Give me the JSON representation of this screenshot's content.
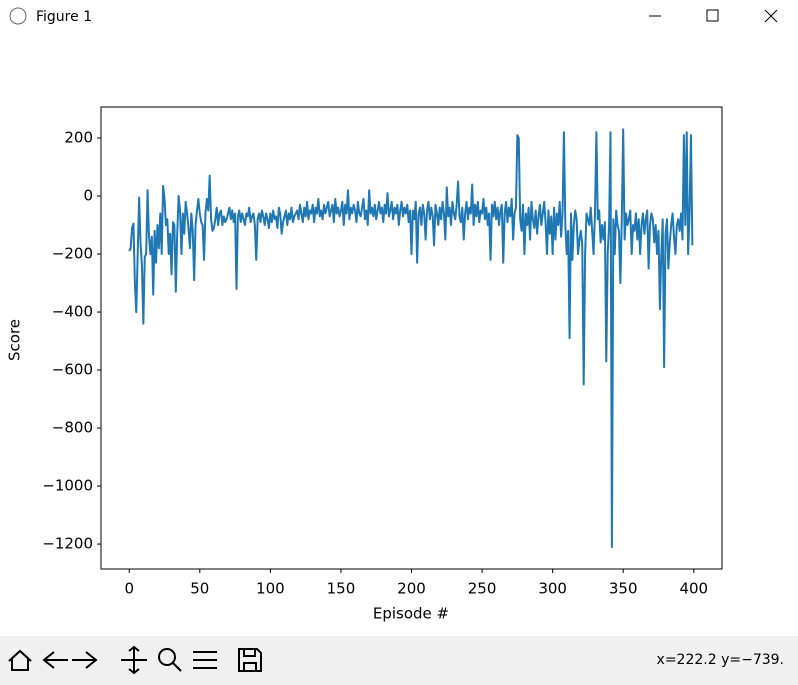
{
  "window": {
    "title": "Figure 1"
  },
  "toolbar": {
    "coordinates": "x=222.2 y=−739."
  },
  "chart_data": {
    "type": "line",
    "xlabel": "Episode #",
    "ylabel": "Score",
    "color": "#1f77b4",
    "xlim": [
      -20,
      420
    ],
    "ylim": [
      -1286,
      307
    ],
    "xticks": [
      0,
      50,
      100,
      150,
      200,
      250,
      300,
      350,
      400
    ],
    "yticks": [
      {
        "value": -1200,
        "label": "−1200"
      },
      {
        "value": -1000,
        "label": "−1000"
      },
      {
        "value": -800,
        "label": "−800"
      },
      {
        "value": -600,
        "label": "−600"
      },
      {
        "value": -400,
        "label": "−400"
      },
      {
        "value": -200,
        "label": "−200"
      },
      0,
      200
    ],
    "x": [
      0,
      1,
      2,
      3,
      4,
      5,
      6,
      7,
      8,
      9,
      10,
      11,
      12,
      13,
      14,
      15,
      16,
      17,
      18,
      19,
      20,
      21,
      22,
      23,
      24,
      25,
      26,
      27,
      28,
      29,
      30,
      31,
      32,
      33,
      34,
      35,
      36,
      37,
      38,
      39,
      40,
      41,
      42,
      43,
      44,
      45,
      46,
      47,
      48,
      49,
      50,
      51,
      52,
      53,
      54,
      55,
      56,
      57,
      58,
      59,
      60,
      61,
      62,
      63,
      64,
      65,
      66,
      67,
      68,
      69,
      70,
      71,
      72,
      73,
      74,
      75,
      76,
      77,
      78,
      79,
      80,
      81,
      82,
      83,
      84,
      85,
      86,
      87,
      88,
      89,
      90,
      91,
      92,
      93,
      94,
      95,
      96,
      97,
      98,
      99,
      100,
      101,
      102,
      103,
      104,
      105,
      106,
      107,
      108,
      109,
      110,
      111,
      112,
      113,
      114,
      115,
      116,
      117,
      118,
      119,
      120,
      121,
      122,
      123,
      124,
      125,
      126,
      127,
      128,
      129,
      130,
      131,
      132,
      133,
      134,
      135,
      136,
      137,
      138,
      139,
      140,
      141,
      142,
      143,
      144,
      145,
      146,
      147,
      148,
      149,
      150,
      151,
      152,
      153,
      154,
      155,
      156,
      157,
      158,
      159,
      160,
      161,
      162,
      163,
      164,
      165,
      166,
      167,
      168,
      169,
      170,
      171,
      172,
      173,
      174,
      175,
      176,
      177,
      178,
      179,
      180,
      181,
      182,
      183,
      184,
      185,
      186,
      187,
      188,
      189,
      190,
      191,
      192,
      193,
      194,
      195,
      196,
      197,
      198,
      199,
      200,
      201,
      202,
      203,
      204,
      205,
      206,
      207,
      208,
      209,
      210,
      211,
      212,
      213,
      214,
      215,
      216,
      217,
      218,
      219,
      220,
      221,
      222,
      223,
      224,
      225,
      226,
      227,
      228,
      229,
      230,
      231,
      232,
      233,
      234,
      235,
      236,
      237,
      238,
      239,
      240,
      241,
      242,
      243,
      244,
      245,
      246,
      247,
      248,
      249,
      250,
      251,
      252,
      253,
      254,
      255,
      256,
      257,
      258,
      259,
      260,
      261,
      262,
      263,
      264,
      265,
      266,
      267,
      268,
      269,
      270,
      271,
      272,
      273,
      274,
      275,
      276,
      277,
      278,
      279,
      280,
      281,
      282,
      283,
      284,
      285,
      286,
      287,
      288,
      289,
      290,
      291,
      292,
      293,
      294,
      295,
      296,
      297,
      298,
      299,
      300,
      301,
      302,
      303,
      304,
      305,
      306,
      307,
      308,
      309,
      310,
      311,
      312,
      313,
      314,
      315,
      316,
      317,
      318,
      319,
      320,
      321,
      322,
      323,
      324,
      325,
      326,
      327,
      328,
      329,
      330,
      331,
      332,
      333,
      334,
      335,
      336,
      337,
      338,
      339,
      340,
      341,
      342,
      343,
      344,
      345,
      346,
      347,
      348,
      349,
      350,
      351,
      352,
      353,
      354,
      355,
      356,
      357,
      358,
      359,
      360,
      361,
      362,
      363,
      364,
      365,
      366,
      367,
      368,
      369,
      370,
      371,
      372,
      373,
      374,
      375,
      376,
      377,
      378,
      379,
      380,
      381,
      382,
      383,
      384,
      385,
      386,
      387,
      388,
      389,
      390,
      391,
      392,
      393,
      394,
      395,
      396,
      397,
      398,
      399
    ],
    "values": [
      -190,
      -180,
      -110,
      -95,
      -300,
      -400,
      -200,
      -5,
      -160,
      -240,
      -440,
      -210,
      -200,
      20,
      -140,
      -200,
      -140,
      -340,
      -120,
      -230,
      -100,
      -180,
      -60,
      -200,
      35,
      -10,
      -100,
      -80,
      -200,
      -130,
      -270,
      -90,
      -100,
      -330,
      -130,
      0,
      -50,
      -200,
      -60,
      -130,
      -20,
      -60,
      -110,
      -180,
      -60,
      -120,
      -290,
      -100,
      -50,
      -10,
      -60,
      -90,
      -100,
      -220,
      -60,
      -10,
      -50,
      70,
      -80,
      -120,
      -110,
      -80,
      -40,
      -100,
      -60,
      -50,
      -100,
      -70,
      -90,
      -80,
      -60,
      -40,
      -80,
      -50,
      -90,
      -60,
      -320,
      -70,
      -50,
      -90,
      -60,
      -80,
      -100,
      -60,
      -70,
      -40,
      -90,
      -70,
      -60,
      -100,
      -220,
      -80,
      -60,
      -90,
      -50,
      -70,
      -100,
      -60,
      -80,
      -110,
      -60,
      -90,
      -50,
      -80,
      -70,
      -110,
      -40,
      -60,
      -130,
      -90,
      -70,
      -50,
      -100,
      -60,
      -80,
      -40,
      -90,
      -70,
      -60,
      -50,
      -80,
      -30,
      -60,
      -90,
      -40,
      -70,
      -20,
      -80,
      -50,
      -60,
      -30,
      -90,
      -40,
      -60,
      -10,
      -70,
      -50,
      -80,
      -30,
      -60,
      -40,
      -20,
      -70,
      -50,
      -30,
      -90,
      -10,
      -60,
      -40,
      -70,
      -50,
      -20,
      -100,
      -30,
      -60,
      20,
      -80,
      -40,
      -60,
      -30,
      -50,
      -90,
      -20,
      -60,
      -70,
      -40,
      -10,
      -80,
      -50,
      -100,
      20,
      -60,
      -40,
      -70,
      -30,
      -80,
      -50,
      -20,
      -60,
      -40,
      -90,
      -30,
      -60,
      10,
      -70,
      -50,
      -20,
      -80,
      -40,
      -60,
      -30,
      -100,
      -50,
      -20,
      -70,
      -40,
      -60,
      -30,
      -90,
      -50,
      -200,
      -50,
      -80,
      -20,
      -230,
      -60,
      -40,
      -100,
      -30,
      -60,
      -150,
      -50,
      -20,
      -80,
      -40,
      -70,
      -170,
      -30,
      -60,
      -100,
      -40,
      -80,
      -20,
      -60,
      -150,
      30,
      -70,
      -40,
      -100,
      -20,
      -60,
      -80,
      -30,
      50,
      -70,
      -90,
      -40,
      -150,
      -60,
      -20,
      -80,
      -40,
      -60,
      40,
      -100,
      -30,
      -70,
      -20,
      -90,
      -50,
      -60,
      -10,
      -80,
      -40,
      -100,
      -60,
      -220,
      -30,
      -70,
      -20,
      -80,
      -40,
      -100,
      -50,
      -30,
      -230,
      -60,
      -20,
      -90,
      -40,
      -70,
      -10,
      -150,
      -60,
      -40,
      210,
      200,
      -80,
      -120,
      -30,
      -200,
      -60,
      -100,
      -40,
      -150,
      -20,
      -80,
      -110,
      -50,
      -130,
      -70,
      -30,
      -100,
      -60,
      -20,
      -90,
      -200,
      -50,
      -130,
      -70,
      -200,
      -40,
      -150,
      -60,
      -100,
      -20,
      -140,
      -60,
      220,
      -100,
      -200,
      -120,
      -490,
      -60,
      -220,
      -100,
      -50,
      -80,
      -200,
      -150,
      -120,
      -170,
      -650,
      -200,
      -60,
      -80,
      -100,
      -40,
      -120,
      -200,
      -60,
      220,
      -80,
      -50,
      -160,
      -100,
      -150,
      -90,
      -570,
      -200,
      -100,
      220,
      -1210,
      -80,
      -200,
      -50,
      -100,
      -120,
      -300,
      -80,
      230,
      -150,
      -60,
      -100,
      -80,
      -50,
      -200,
      -100,
      -120,
      -60,
      -150,
      -80,
      -200,
      -100,
      -60,
      -130,
      -80,
      -50,
      -250,
      -100,
      -60,
      -80,
      -160,
      -100,
      -200,
      -120,
      -390,
      -200,
      -80,
      -590,
      -130,
      -80,
      -250,
      -160,
      -100,
      -60,
      -140,
      -200,
      -100,
      -80,
      -120,
      -60,
      -150,
      210,
      -100,
      220,
      -200,
      -60,
      210,
      -170
    ]
  }
}
